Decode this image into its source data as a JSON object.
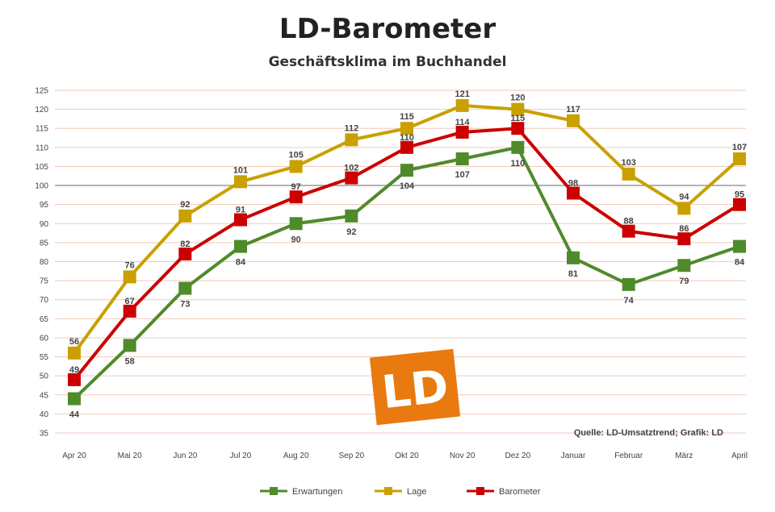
{
  "chart_data": {
    "type": "line",
    "title": "LD-Barometer",
    "subtitle": "Geschäftsklima im Buchhandel",
    "source": "Quelle: LD-Umsatztrend; Grafik: LD",
    "categories": [
      "Apr 20",
      "Mai 20",
      "Jun 20",
      "Jul 20",
      "Aug 20",
      "Sep 20",
      "Okt 20",
      "Nov 20",
      "Dez 20",
      "Januar",
      "Februar",
      "März",
      "April"
    ],
    "ylim": [
      35,
      125
    ],
    "yticks": [
      35,
      40,
      45,
      50,
      55,
      60,
      65,
      70,
      75,
      80,
      85,
      90,
      95,
      100,
      105,
      110,
      115,
      120,
      125
    ],
    "reference_line": 100,
    "grid": true,
    "legend_position": "bottom",
    "series": [
      {
        "name": "Erwartungen",
        "color": "#4f8a2b",
        "values": [
          44,
          58,
          73,
          84,
          90,
          92,
          104,
          107,
          110,
          81,
          74,
          79,
          84
        ]
      },
      {
        "name": "Lage",
        "color": "#c9a000",
        "values": [
          56,
          76,
          92,
          101,
          105,
          112,
          115,
          121,
          120,
          117,
          103,
          94,
          107
        ]
      },
      {
        "name": "Barometer",
        "color": "#cc0000",
        "values": [
          49,
          67,
          82,
          91,
          97,
          102,
          110,
          114,
          115,
          98,
          88,
          86,
          95
        ]
      }
    ]
  },
  "logo": {
    "text": "LD",
    "color": "#e87a10"
  }
}
